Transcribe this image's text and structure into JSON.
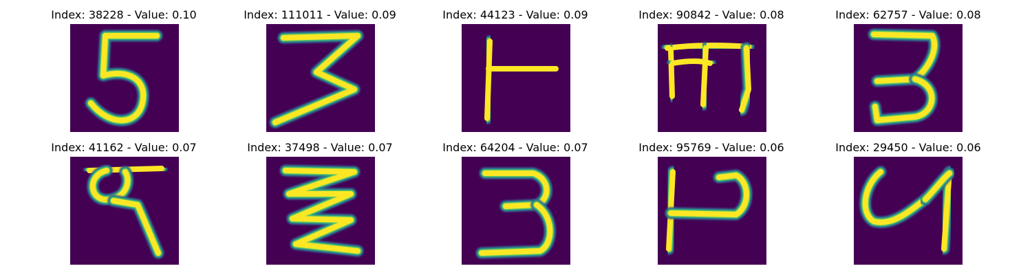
{
  "colormap": [
    "#440154",
    "#3b528b",
    "#21918c",
    "#5ec962",
    "#fde725"
  ],
  "panels": [
    {
      "title": "Index: 38228 - Value: 0.10",
      "glyph_icon": "handwritten-5"
    },
    {
      "title": "Index: 111011 - Value: 0.09",
      "glyph_icon": "handwritten-3-zigzag"
    },
    {
      "title": "Index: 44123 - Value: 0.09",
      "glyph_icon": "handwritten-vertical-bar-with-crossbar"
    },
    {
      "title": "Index: 90842 - Value: 0.08",
      "glyph_icon": "handwritten-m-like"
    },
    {
      "title": "Index: 62757 - Value: 0.08",
      "glyph_icon": "handwritten-3"
    },
    {
      "title": "Index: 41162 - Value: 0.07",
      "glyph_icon": "handwritten-9-like"
    },
    {
      "title": "Index: 37498 - Value: 0.07",
      "glyph_icon": "handwritten-zigzag-3"
    },
    {
      "title": "Index: 64204 - Value: 0.07",
      "glyph_icon": "handwritten-3"
    },
    {
      "title": "Index: 95769 - Value: 0.06",
      "glyph_icon": "handwritten-p-like"
    },
    {
      "title": "Index: 29450 - Value: 0.06",
      "glyph_icon": "handwritten-4-like"
    }
  ]
}
